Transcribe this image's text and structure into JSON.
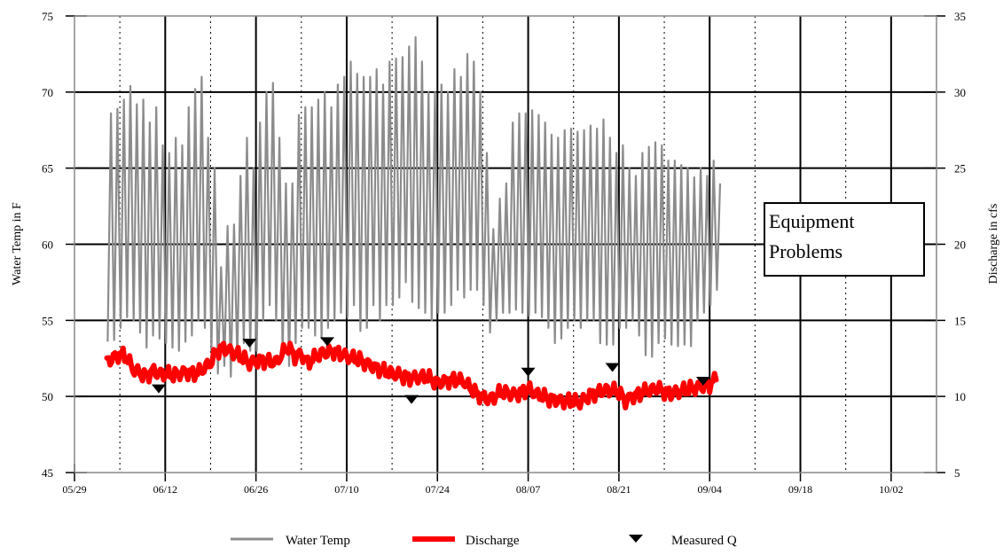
{
  "chart_data": {
    "type": "line",
    "title": "",
    "ylabel": "Water Temp in F",
    "y2label": "Discharge in cfs",
    "xlabel": "",
    "ylim": [
      45,
      75
    ],
    "y2lim": [
      5,
      35
    ],
    "yticks": [
      "45",
      "50",
      "55",
      "60",
      "65",
      "70",
      "75"
    ],
    "y2ticks": [
      "5",
      "10",
      "15",
      "20",
      "25",
      "30",
      "35"
    ],
    "xticks": [
      "05/29",
      "06/12",
      "06/26",
      "07/10",
      "07/24",
      "08/07",
      "08/21",
      "09/04",
      "09/18",
      "10/02"
    ],
    "x_axis_start": "05/29",
    "x_axis_end": "10/09",
    "grid": "major solid, minor dotted",
    "annotation": [
      "Equipment",
      "Problems"
    ],
    "legend_position": "bottom",
    "series": [
      {
        "name": "Water Temp",
        "axis": "left",
        "color": "#8c8c8c",
        "description": "diurnal cycle, daily max and min",
        "days": [
          "06/03",
          "06/04",
          "06/05",
          "06/06",
          "06/07",
          "06/08",
          "06/09",
          "06/10",
          "06/11",
          "06/12",
          "06/13",
          "06/14",
          "06/15",
          "06/16",
          "06/17",
          "06/18",
          "06/19",
          "06/20",
          "06/21",
          "06/22",
          "06/23",
          "06/24",
          "06/25",
          "06/26",
          "06/27",
          "06/28",
          "06/29",
          "06/30",
          "07/01",
          "07/02",
          "07/03",
          "07/04",
          "07/05",
          "07/06",
          "07/07",
          "07/08",
          "07/09",
          "07/10",
          "07/11",
          "07/12",
          "07/13",
          "07/14",
          "07/15",
          "07/16",
          "07/17",
          "07/18",
          "07/19",
          "07/20",
          "07/21",
          "07/22",
          "07/23",
          "07/24",
          "07/25",
          "07/26",
          "07/27",
          "07/28",
          "07/29",
          "07/30",
          "07/31",
          "08/01",
          "08/02",
          "08/03",
          "08/04",
          "08/05",
          "08/06",
          "08/07",
          "08/08",
          "08/09",
          "08/10",
          "08/11",
          "08/12",
          "08/13",
          "08/14",
          "08/15",
          "08/16",
          "08/17",
          "08/18",
          "08/19",
          "08/20",
          "08/21",
          "08/22",
          "08/23",
          "08/24",
          "08/25",
          "08/26",
          "08/27",
          "08/28",
          "08/29",
          "08/30",
          "08/31",
          "09/01",
          "09/02",
          "09/03",
          "09/04",
          "09/05"
        ],
        "max": [
          68.6,
          68.9,
          69.5,
          70.4,
          69.2,
          69.5,
          68.0,
          69.0,
          66.5,
          66.0,
          67.0,
          66.5,
          69.0,
          70.2,
          71.0,
          67.0,
          65.0,
          58.5,
          61.2,
          61.3,
          64.5,
          67.0,
          65.0,
          68.0,
          70.0,
          70.6,
          67.0,
          64.0,
          64.0,
          68.5,
          69.0,
          69.0,
          69.5,
          70.0,
          69.0,
          70.5,
          71.0,
          72.0,
          71.2,
          71.0,
          71.0,
          71.5,
          70.5,
          72.0,
          72.2,
          72.3,
          73.0,
          73.6,
          72.0,
          70.0,
          70.0,
          70.5,
          70.0,
          71.5,
          71.0,
          72.5,
          72.0,
          70.0,
          66.0,
          61.0,
          63.0,
          64.0,
          68.0,
          68.6,
          68.6,
          68.8,
          68.5,
          68.0,
          67.2,
          67.0,
          67.5,
          67.6,
          67.4,
          67.5,
          67.8,
          67.6,
          68.2,
          67.0,
          66.0,
          66.5,
          65.0,
          64.5,
          66.0,
          66.4,
          66.7,
          66.5,
          65.5,
          65.5,
          65.2,
          65.0,
          64.4,
          65.0,
          64.5,
          65.5,
          64.0
        ],
        "min": [
          53.6,
          53.7,
          54.5,
          55.2,
          55.0,
          54.2,
          53.2,
          54.0,
          53.8,
          53.5,
          53.2,
          53.0,
          53.6,
          54.0,
          55.0,
          54.5,
          53.0,
          51.5,
          52.0,
          51.3,
          52.5,
          53.5,
          53.0,
          53.0,
          55.0,
          56.0,
          55.0,
          53.0,
          52.0,
          53.5,
          54.5,
          54.5,
          54.0,
          53.8,
          54.5,
          55.0,
          55.5,
          55.2,
          56.0,
          54.3,
          54.5,
          56.0,
          55.0,
          56.0,
          56.0,
          56.5,
          57.5,
          56.2,
          55.8,
          55.5,
          55.0,
          55.5,
          55.5,
          56.0,
          57.0,
          56.5,
          57.0,
          57.0,
          56.0,
          54.2,
          55.0,
          55.5,
          55.5,
          55.7,
          55.5,
          55.3,
          55.5,
          55.2,
          54.5,
          53.5,
          53.8,
          54.5,
          55.0,
          54.5,
          55.0,
          55.0,
          53.5,
          53.4,
          53.4,
          54.5,
          54.5,
          55.0,
          54.0,
          52.7,
          52.6,
          53.5,
          53.8,
          53.4,
          53.3,
          53.4,
          53.3,
          55.0,
          55.5,
          56.0,
          57.0
        ]
      },
      {
        "name": "Discharge",
        "axis": "right",
        "color": "#ff0000",
        "dates": [
          "06/03",
          "06/05",
          "06/06",
          "06/07",
          "06/09",
          "06/10",
          "06/11",
          "06/13",
          "06/15",
          "06/17",
          "06/19",
          "06/20",
          "06/21",
          "06/23",
          "06/24",
          "06/25",
          "06/27",
          "06/29",
          "07/01",
          "07/02",
          "07/03",
          "07/04",
          "07/06",
          "07/08",
          "07/10",
          "07/12",
          "07/14",
          "07/16",
          "07/18",
          "07/20",
          "07/22",
          "07/24",
          "07/26",
          "07/28",
          "07/30",
          "08/01",
          "08/03",
          "08/05",
          "08/07",
          "08/08",
          "08/09",
          "08/11",
          "08/13",
          "08/15",
          "08/17",
          "08/19",
          "08/21",
          "08/22",
          "08/23",
          "08/25",
          "08/27",
          "08/29",
          "08/31",
          "09/02",
          "09/04",
          "09/05"
        ],
        "values": [
          12.3,
          12.8,
          12.6,
          11.8,
          11.3,
          11.7,
          11.5,
          11.4,
          11.6,
          11.5,
          12.2,
          13.0,
          13.2,
          12.8,
          12.5,
          12.2,
          12.4,
          12.2,
          13.3,
          12.6,
          12.8,
          12.2,
          12.8,
          13.0,
          12.6,
          12.4,
          12.0,
          11.6,
          11.4,
          11.2,
          11.3,
          10.9,
          11.1,
          11.0,
          10.2,
          9.8,
          10.3,
          10.1,
          10.5,
          10.2,
          10.0,
          9.8,
          9.7,
          9.6,
          10.2,
          10.4,
          10.3,
          9.7,
          10.0,
          10.3,
          10.5,
          10.2,
          10.4,
          10.6,
          10.8,
          11.1
        ]
      },
      {
        "name": "Measured Q",
        "axis": "right",
        "marker": "triangle-down",
        "color": "#000000",
        "dates": [
          "06/11",
          "06/25",
          "07/07",
          "07/20",
          "08/07",
          "08/20",
          "09/03"
        ],
        "values": [
          10.5,
          13.5,
          13.6,
          9.8,
          11.6,
          11.9,
          11.0
        ]
      }
    ]
  }
}
